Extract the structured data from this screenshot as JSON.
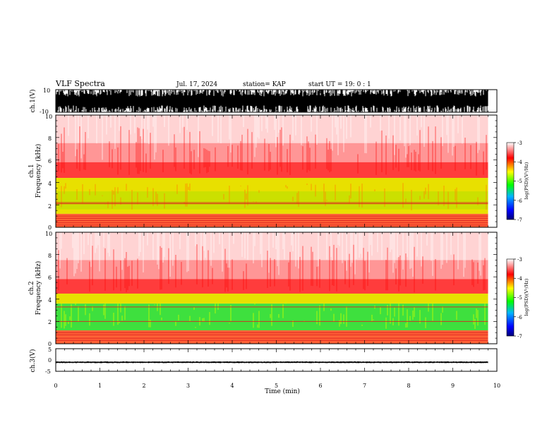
{
  "header": {
    "title": "VLF Spectra",
    "date": "Jul. 17, 2024",
    "station": "station= KAP",
    "start": "start UT =  19: 0 : 1"
  },
  "chart_data": [
    {
      "type": "line",
      "panel": "ch.1 waveform",
      "ylabel": "ch.1(V)",
      "ylim": [
        -10,
        10
      ],
      "yticks": [
        "10",
        "-10"
      ],
      "xlim": [
        0,
        10
      ],
      "data_extent_min": [
        0,
        9.8
      ],
      "description_values": {
        "amplitude_range_V": [
          -10,
          10
        ]
      }
    },
    {
      "type": "heatmap",
      "panel": "ch.1 spectrogram",
      "ylabel": "ch.1 Frequency (kHz)",
      "ylabel_line1": "ch.1",
      "ylabel_line2": "Frequency (kHz)",
      "ylim": [
        0,
        10
      ],
      "yticks": [
        "0",
        "2",
        "4",
        "6",
        "8",
        "10"
      ],
      "xlim": [
        0,
        10
      ],
      "colorbar": {
        "label": "log(PSD)(V²/Hz)",
        "range": [
          -7,
          -3
        ],
        "ticks": [
          "-3",
          "-4",
          "-5",
          "-6",
          "-7"
        ]
      },
      "bands_kHz": {
        "yellow_green": [
          1.2,
          4.2
        ],
        "red_upper": [
          4.2,
          10
        ],
        "lines": [
          0.2,
          0.4,
          0.6,
          0.8,
          1.0,
          2.1,
          2.2
        ]
      }
    },
    {
      "type": "heatmap",
      "panel": "ch.2 spectrogram",
      "ylabel": "ch.2 Frequency (kHz)",
      "ylabel_line1": "ch.2",
      "ylabel_line2": "Frequency (kHz)",
      "ylim": [
        0,
        10
      ],
      "yticks": [
        "0",
        "2",
        "4",
        "6",
        "8",
        "10"
      ],
      "xlim": [
        0,
        10
      ],
      "colorbar": {
        "label": "log(PSD)(V²/Hz)",
        "range": [
          -7,
          -3
        ],
        "ticks": [
          "-3",
          "-4",
          "-5",
          "-6",
          "-7"
        ]
      },
      "bands_kHz": {
        "green": [
          1.2,
          3.6
        ],
        "yellow": [
          3.6,
          4.5
        ],
        "red_upper": [
          4.5,
          10
        ],
        "lines": [
          0.3,
          0.5,
          0.8,
          1.0,
          2.0,
          3.3
        ]
      }
    },
    {
      "type": "line",
      "panel": "ch.3 waveform",
      "ylabel": "ch.3(V)",
      "ylim": [
        -5,
        5
      ],
      "yticks": [
        "5",
        "0",
        "-5"
      ],
      "xlim": [
        0,
        10
      ],
      "xticks": [
        "0",
        "1",
        "2",
        "3",
        "4",
        "5",
        "6",
        "7",
        "8",
        "9",
        "10"
      ],
      "xlabel": "Time (min)",
      "data_extent_min": [
        0,
        9.8
      ],
      "description_values": {
        "amplitude_range_V": [
          -1.2,
          -0.8
        ]
      }
    }
  ]
}
